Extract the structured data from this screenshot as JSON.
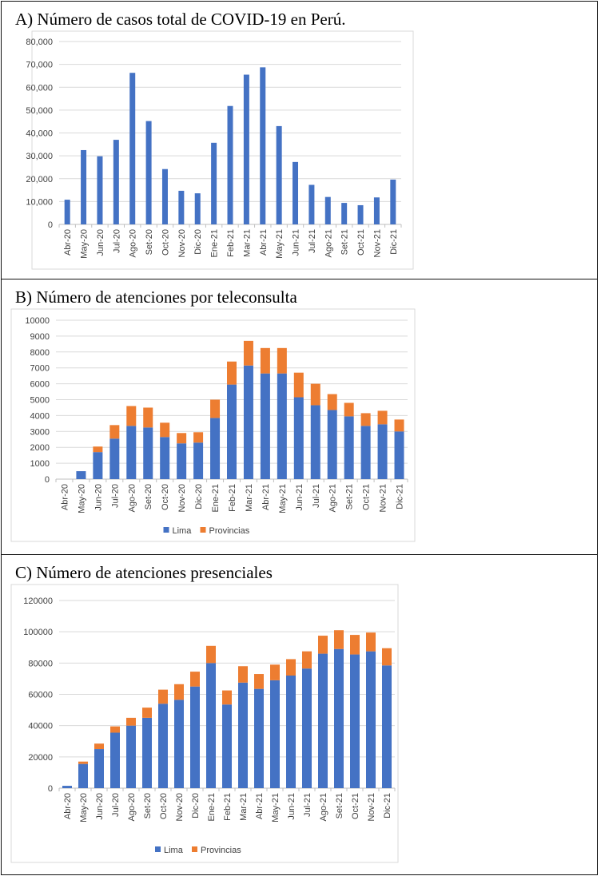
{
  "colors": {
    "lima": "#4472C4",
    "provincias": "#ED7D31",
    "grid": "#D9D9D9",
    "axis": "#BFBFBF",
    "text": "#404040"
  },
  "panels": {
    "a": {
      "title": "A) Número de casos total de COVID-19 en Perú."
    },
    "b": {
      "title": "B) Número de atenciones por teleconsulta"
    },
    "c": {
      "title": "C) Número de atenciones presenciales"
    }
  },
  "chart_data": [
    {
      "type": "bar",
      "title": "A) Número de casos total de COVID-19 en Perú.",
      "categories": [
        "Abr-20",
        "May-20",
        "Jun-20",
        "Jul-20",
        "Ago-20",
        "Set-20",
        "Oct-20",
        "Nov-20",
        "Dic-20",
        "Ene-21",
        "Feb-21",
        "Mar-21",
        "Abr-21",
        "May-21",
        "Jun-21",
        "Jul-21",
        "Ago-21",
        "Set-21",
        "Oct-21",
        "Nov-21",
        "Dic-21"
      ],
      "values": [
        10800,
        32500,
        29800,
        37000,
        66300,
        45200,
        24200,
        14700,
        13600,
        35700,
        51800,
        65500,
        68700,
        43000,
        27300,
        17300,
        12000,
        9400,
        8400,
        11800,
        19600
      ],
      "ylim": [
        0,
        80000
      ],
      "yticks": [
        "0",
        "10,000",
        "20,000",
        "30,000",
        "40,000",
        "50,000",
        "60,000",
        "70,000",
        "80,000"
      ],
      "grid": true
    },
    {
      "type": "bar",
      "stacked": true,
      "title": "B) Número de atenciones por teleconsulta",
      "categories": [
        "Abr-20",
        "May-20",
        "Jun-20",
        "Jul-20",
        "Ago-20",
        "Set-20",
        "Oct-20",
        "Nov-20",
        "Dic-20",
        "Ene-21",
        "Feb-21",
        "Mar-21",
        "Abr-21",
        "May-21",
        "Jun-21",
        "Jul-21",
        "Ago-21",
        "Set-21",
        "Oct-21",
        "Nov-21",
        "Dic-21"
      ],
      "series": [
        {
          "name": "Lima",
          "values": [
            0,
            500,
            1700,
            2550,
            3350,
            3250,
            2650,
            2250,
            2300,
            3850,
            5950,
            7150,
            6650,
            6650,
            5150,
            4650,
            4350,
            3950,
            3350,
            3450,
            3000
          ]
        },
        {
          "name": "Provincias",
          "values": [
            0,
            0,
            350,
            850,
            1250,
            1250,
            900,
            650,
            650,
            1150,
            1450,
            1550,
            1600,
            1600,
            1550,
            1350,
            1000,
            850,
            800,
            850,
            750
          ]
        }
      ],
      "ylim": [
        0,
        10000
      ],
      "yticks": [
        "0",
        "1000",
        "2000",
        "3000",
        "4000",
        "5000",
        "6000",
        "7000",
        "8000",
        "9000",
        "10000"
      ],
      "grid": true,
      "legend": "bottom"
    },
    {
      "type": "bar",
      "stacked": true,
      "title": "C) Número de atenciones presenciales",
      "categories": [
        "Abr-20",
        "May-20",
        "Jun-20",
        "Jul-20",
        "Ago-20",
        "Set-20",
        "Oct-20",
        "Nov-20",
        "Dic-20",
        "Ene-21",
        "Feb-21",
        "Mar-21",
        "Abr-21",
        "May-21",
        "Jun-21",
        "Jul-21",
        "Ago-21",
        "Set-21",
        "Oct-21",
        "Nov-21",
        "Dic-21"
      ],
      "series": [
        {
          "name": "Lima",
          "values": [
            1500,
            15500,
            25000,
            35500,
            40000,
            45000,
            54000,
            56500,
            65000,
            80000,
            53500,
            67500,
            63500,
            69000,
            72000,
            76500,
            86000,
            89000,
            85500,
            87500,
            78500
          ]
        },
        {
          "name": "Provincias",
          "values": [
            0,
            1500,
            3500,
            4000,
            5000,
            6500,
            9000,
            10000,
            9500,
            11000,
            9000,
            10500,
            9500,
            10000,
            10500,
            11000,
            11500,
            12000,
            12500,
            12000,
            11000
          ]
        }
      ],
      "ylim": [
        0,
        120000
      ],
      "yticks": [
        "0",
        "20000",
        "40000",
        "60000",
        "80000",
        "100000",
        "120000"
      ],
      "grid": true,
      "legend": "bottom"
    }
  ]
}
